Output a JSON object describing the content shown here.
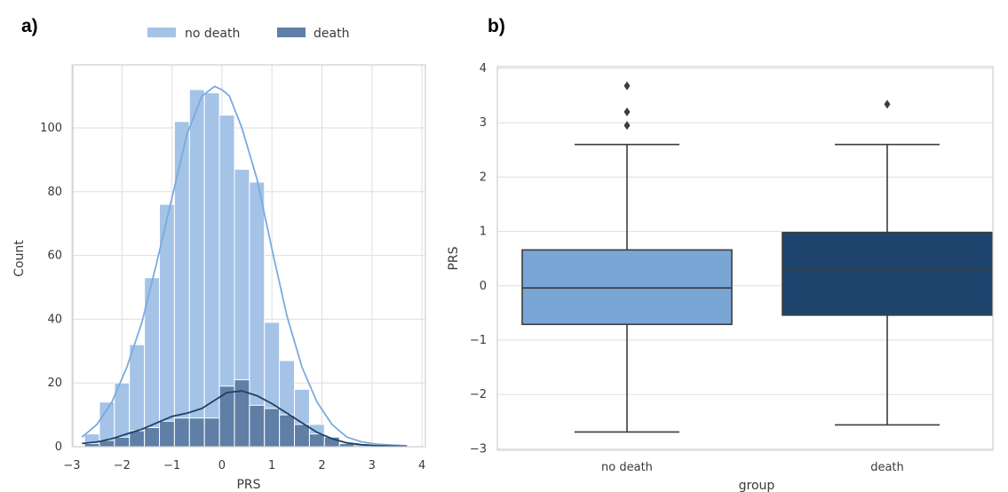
{
  "panels": {
    "a": "a)",
    "b": "b)"
  },
  "chart_data": [
    {
      "type": "bar",
      "subtype": "histogram-with-kde",
      "xlabel": "PRS",
      "ylabel": "Count",
      "xlim": [
        -3,
        4
      ],
      "ylim": [
        0,
        115
      ],
      "xticks": [
        -3,
        -2,
        -1,
        0,
        1,
        2,
        3,
        4
      ],
      "xtick_labels": [
        "−3",
        "−2",
        "−1",
        "0",
        "1",
        "2",
        "3",
        "4"
      ],
      "yticks": [
        0,
        20,
        40,
        60,
        80,
        100
      ],
      "grid": true,
      "legend_position": "top-center",
      "bin_edges": [
        -2.75,
        -2.45,
        -2.15,
        -1.85,
        -1.55,
        -1.25,
        -0.95,
        -0.65,
        -0.35,
        -0.05,
        0.25,
        0.55,
        0.85,
        1.15,
        1.45,
        1.75,
        2.05,
        2.35,
        2.65,
        2.95,
        3.25,
        3.55,
        3.85
      ],
      "series": [
        {
          "name": "no death",
          "color": "#a4c3e6",
          "kde_color": "#7aaadf",
          "counts": [
            4,
            14,
            20,
            32,
            53,
            76,
            102,
            112,
            111,
            104,
            87,
            83,
            39,
            27,
            18,
            7,
            3,
            1,
            1,
            0,
            0,
            0
          ],
          "kde_x": [
            -2.8,
            -2.5,
            -2.2,
            -1.9,
            -1.6,
            -1.3,
            -1.0,
            -0.7,
            -0.4,
            -0.15,
            0.0,
            0.15,
            0.4,
            0.7,
            1.0,
            1.3,
            1.6,
            1.9,
            2.2,
            2.5,
            2.8,
            3.1,
            3.4,
            3.7
          ],
          "kde_y": [
            3,
            7,
            14,
            25,
            39,
            58,
            78,
            98,
            110,
            113,
            112,
            110,
            100,
            84,
            62,
            41,
            25,
            14,
            7,
            3,
            1.5,
            0.8,
            0.5,
            0.3
          ]
        },
        {
          "name": "death",
          "color": "#5f7fa6",
          "kde_color": "#1f3f67",
          "counts": [
            1,
            2,
            3,
            5,
            6,
            8,
            9,
            9,
            9,
            19,
            21,
            13,
            12,
            10,
            7,
            4,
            3,
            1,
            0,
            0,
            0,
            0
          ],
          "kde_x": [
            -2.8,
            -2.5,
            -2.2,
            -1.9,
            -1.6,
            -1.3,
            -1.0,
            -0.7,
            -0.4,
            -0.1,
            0.1,
            0.4,
            0.7,
            1.0,
            1.3,
            1.6,
            1.9,
            2.2,
            2.5,
            2.8,
            3.1,
            3.4,
            3.7
          ],
          "kde_y": [
            1,
            1.5,
            2.5,
            4,
            5.5,
            7.5,
            9.5,
            10.5,
            12,
            15,
            17,
            17.5,
            16,
            13.5,
            10.5,
            7.5,
            4.5,
            2.5,
            1.2,
            0.6,
            0.3,
            0.2,
            0.1
          ]
        }
      ]
    },
    {
      "type": "box",
      "xlabel": "group",
      "ylabel": "PRS",
      "categories": [
        "no death",
        "death"
      ],
      "ylim": [
        -3,
        4
      ],
      "yticks": [
        -3,
        -2,
        -1,
        0,
        1,
        2,
        3,
        4
      ],
      "ytick_labels": [
        "−3",
        "−2",
        "−1",
        "0",
        "1",
        "2",
        "3",
        "4"
      ],
      "grid": true,
      "boxes": [
        {
          "category": "no death",
          "color": "#7aa6d6",
          "whisker_low": -2.69,
          "q1": -0.71,
          "median": -0.04,
          "q3": 0.66,
          "whisker_high": 2.6,
          "outliers": [
            2.95,
            3.2,
            3.68
          ]
        },
        {
          "category": "death",
          "color": "#1f456e",
          "whisker_low": -2.56,
          "q1": -0.54,
          "median": 0.3,
          "q3": 0.98,
          "whisker_high": 2.6,
          "outliers": [
            3.34
          ]
        }
      ]
    }
  ]
}
